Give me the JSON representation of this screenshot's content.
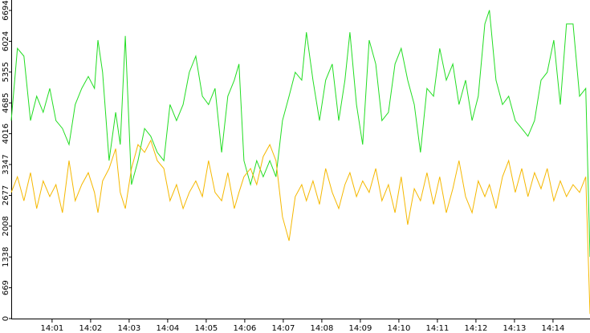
{
  "chart_data": {
    "type": "line",
    "x": [
      839.94,
      840.1,
      840.27,
      840.44,
      840.6,
      840.77,
      840.94,
      841.1,
      841.27,
      841.44,
      841.6,
      841.77,
      841.94,
      842.1,
      842.19,
      842.31,
      842.48,
      842.65,
      842.77,
      842.9,
      843.06,
      843.23,
      843.4,
      843.56,
      843.73,
      843.9,
      844.06,
      844.23,
      844.4,
      844.56,
      844.73,
      844.9,
      845.06,
      845.23,
      845.4,
      845.56,
      845.73,
      845.85,
      845.98,
      846.15,
      846.31,
      846.48,
      846.65,
      846.81,
      846.98,
      847.15,
      847.31,
      847.48,
      847.6,
      847.77,
      847.94,
      848.1,
      848.27,
      848.44,
      848.6,
      848.73,
      848.9,
      849.06,
      849.23,
      849.4,
      849.56,
      849.73,
      849.9,
      850.06,
      850.23,
      850.4,
      850.56,
      850.73,
      850.9,
      851.06,
      851.23,
      851.4,
      851.56,
      851.73,
      851.9,
      852.06,
      852.23,
      852.35,
      852.52,
      852.69,
      852.85,
      853.02,
      853.19,
      853.35,
      853.52,
      853.69,
      853.85,
      854.02,
      854.19,
      854.35,
      854.52,
      854.69,
      854.85,
      854.96
    ],
    "series": [
      {
        "color": "#22dd22",
        "values": [
          4300,
          5870,
          5700,
          4300,
          4830,
          4480,
          5000,
          4300,
          4130,
          3780,
          4650,
          5000,
          5260,
          5000,
          6050,
          5350,
          3430,
          4480,
          3780,
          6140,
          2910,
          3430,
          4130,
          3960,
          3610,
          3430,
          4650,
          4300,
          4650,
          5350,
          5700,
          4830,
          4650,
          5000,
          3610,
          4830,
          5180,
          5530,
          3430,
          2910,
          3430,
          3080,
          3430,
          3080,
          4300,
          4830,
          5350,
          5180,
          6220,
          5180,
          4300,
          5180,
          5530,
          4300,
          5180,
          6220,
          4650,
          3780,
          6050,
          5530,
          4300,
          4480,
          5530,
          5870,
          5180,
          4650,
          3610,
          5000,
          4830,
          5870,
          5180,
          5530,
          4650,
          5180,
          4300,
          4830,
          6400,
          6700,
          5180,
          4650,
          4830,
          4300,
          4130,
          3960,
          4300,
          5180,
          5350,
          6050,
          4650,
          6400,
          6400,
          4830,
          5000,
          1340
        ]
      },
      {
        "color": "#f5b800",
        "values": [
          2740,
          3080,
          2560,
          3170,
          2390,
          2990,
          2650,
          2910,
          2300,
          3430,
          2560,
          2910,
          3170,
          2740,
          2300,
          2990,
          3260,
          3690,
          2740,
          2390,
          3260,
          3780,
          3610,
          3870,
          3430,
          3260,
          2560,
          2910,
          2390,
          2740,
          2990,
          2650,
          3430,
          2740,
          2560,
          3170,
          2390,
          2740,
          3080,
          3260,
          2910,
          3520,
          3780,
          3430,
          2210,
          1690,
          2650,
          2910,
          2560,
          2990,
          2480,
          3260,
          2740,
          2390,
          2910,
          3170,
          2650,
          2990,
          2740,
          3260,
          2560,
          2910,
          2300,
          3080,
          2040,
          2820,
          2560,
          3170,
          2480,
          3080,
          2300,
          2820,
          3430,
          2650,
          2300,
          2990,
          2650,
          2910,
          2390,
          3080,
          3430,
          2740,
          3260,
          2650,
          3170,
          2820,
          3260,
          2560,
          2990,
          2650,
          2910,
          2740,
          3080,
          100
        ]
      }
    ],
    "xlim": [
      839.94,
      854.96
    ],
    "xticks": [
      {
        "value": 841,
        "label": "14:01"
      },
      {
        "value": 842,
        "label": "14:02"
      },
      {
        "value": 843,
        "label": "14:03"
      },
      {
        "value": 844,
        "label": "14:04"
      },
      {
        "value": 845,
        "label": "14:05"
      },
      {
        "value": 846,
        "label": "14:06"
      },
      {
        "value": 847,
        "label": "14:07"
      },
      {
        "value": 848,
        "label": "14:08"
      },
      {
        "value": 849,
        "label": "14:09"
      },
      {
        "value": 850,
        "label": "14:10"
      },
      {
        "value": 851,
        "label": "14:11"
      },
      {
        "value": 852,
        "label": "14:12"
      },
      {
        "value": 853,
        "label": "14:13"
      },
      {
        "value": 854,
        "label": "14:14"
      }
    ],
    "ylim": [
      0,
      6921
    ],
    "yticks": [
      0,
      669,
      1338,
      2008,
      2677,
      3347,
      4016,
      4685,
      5355,
      6024,
      6694
    ]
  }
}
